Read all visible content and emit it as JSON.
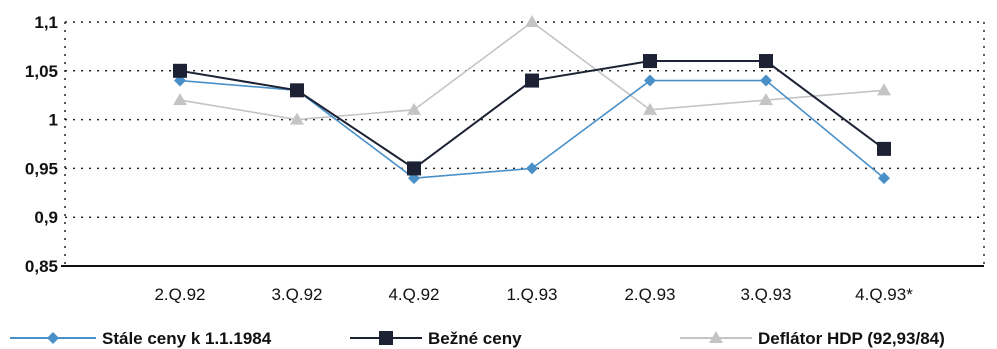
{
  "chart_data": {
    "type": "line",
    "categories": [
      "2.Q.92",
      "3.Q.92",
      "4.Q.92",
      "1.Q.93",
      "2.Q.93",
      "3.Q.93",
      "4.Q.93*"
    ],
    "y_ticks": [
      "1,1",
      "1,05",
      "1",
      "0,95",
      "0,9",
      "0,85"
    ],
    "ylim": [
      0.85,
      1.1
    ],
    "grid": "dotted horizontal",
    "legend_position": "bottom",
    "series": [
      {
        "name": "Stále ceny k 1.1.1984",
        "values": [
          1.04,
          1.03,
          0.94,
          0.95,
          1.04,
          1.04,
          0.94
        ],
        "color": "#4a90c8",
        "marker": "diamond"
      },
      {
        "name": "Bežné ceny",
        "values": [
          1.05,
          1.03,
          0.95,
          1.04,
          1.06,
          1.06,
          0.97
        ],
        "color": "#1c2233",
        "marker": "square"
      },
      {
        "name": "Deflátor HDP (92,93/84)",
        "values": [
          1.02,
          1.0,
          1.01,
          1.1,
          1.01,
          1.02,
          1.03
        ],
        "color": "#c4c4c4",
        "marker": "triangle"
      }
    ]
  }
}
